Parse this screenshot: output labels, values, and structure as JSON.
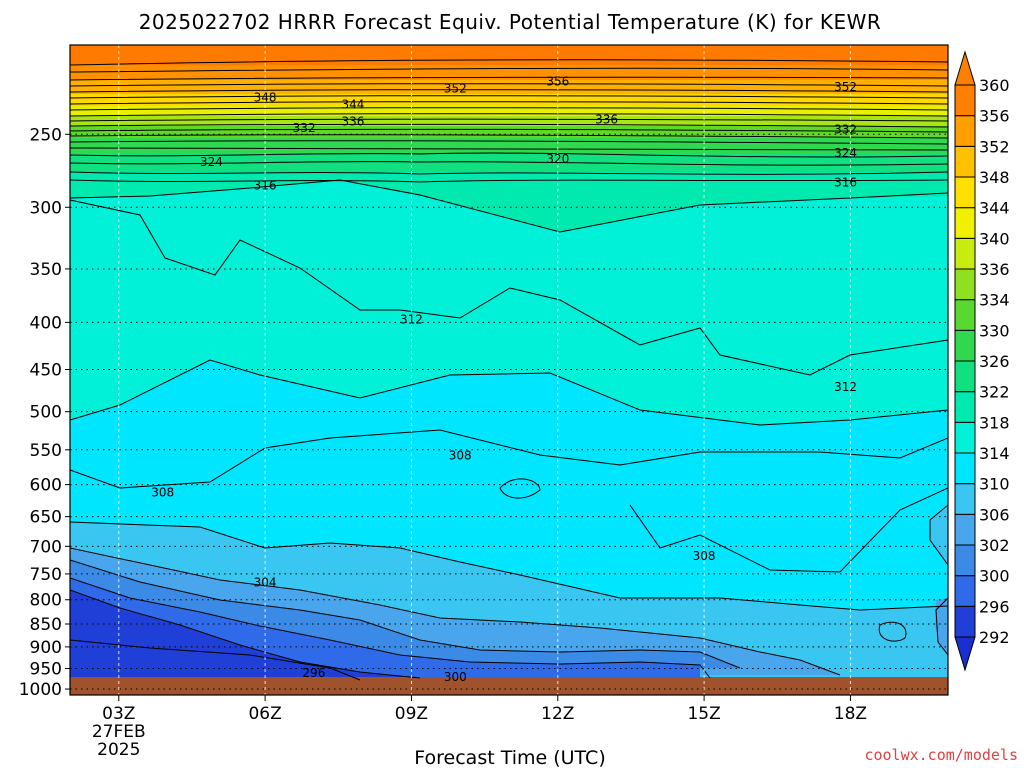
{
  "chart_data": {
    "type": "heatmap",
    "title": "2025022702 HRRR Forecast Equiv. Potential Temperature (K) for KEWR",
    "xlabel": "Forecast Time (UTC)",
    "ylabel": "",
    "credit": "coolwx.com/models",
    "x_ticks": [
      "03Z",
      "06Z",
      "09Z",
      "12Z",
      "15Z",
      "18Z"
    ],
    "x_tick_hours": [
      3,
      6,
      9,
      12,
      15,
      18
    ],
    "x_date_lines": [
      "27FEB",
      "2025"
    ],
    "xlim": [
      2,
      20
    ],
    "y_ticks": [
      250,
      300,
      350,
      400,
      450,
      500,
      550,
      600,
      650,
      700,
      750,
      800,
      850,
      900,
      950,
      1000
    ],
    "y_tick_labels": [
      "250",
      "300",
      "350",
      "400",
      "450",
      "500",
      "550",
      "600",
      "650",
      "700",
      "750",
      "800",
      "850",
      "900",
      "950",
      "1000"
    ],
    "ylim": [
      1015,
      200
    ],
    "y_scale": "log-pressure",
    "grid": true,
    "colorbar": {
      "levels": [
        292,
        296,
        300,
        302,
        306,
        310,
        314,
        318,
        322,
        326,
        330,
        334,
        336,
        340,
        344,
        348,
        352,
        356,
        360
      ],
      "colors": [
        "#1f3fd6",
        "#2f6ae8",
        "#3b8be6",
        "#4aa6ec",
        "#39c6f0",
        "#00e6ff",
        "#00f0d8",
        "#00eab0",
        "#10e080",
        "#30d850",
        "#58d830",
        "#90e020",
        "#c8ec10",
        "#f0f000",
        "#ffe000",
        "#ffc000",
        "#ffa000",
        "#ff8000"
      ]
    },
    "contour_labels": [
      {
        "text": "348",
        "hour": 6.0,
        "p": 228
      },
      {
        "text": "344",
        "hour": 7.8,
        "p": 232
      },
      {
        "text": "352",
        "hour": 9.9,
        "p": 223
      },
      {
        "text": "356",
        "hour": 12.0,
        "p": 219
      },
      {
        "text": "352",
        "hour": 17.9,
        "p": 222
      },
      {
        "text": "336",
        "hour": 7.8,
        "p": 242
      },
      {
        "text": "336",
        "hour": 13.0,
        "p": 241
      },
      {
        "text": "332",
        "hour": 6.8,
        "p": 246
      },
      {
        "text": "332",
        "hour": 17.9,
        "p": 247
      },
      {
        "text": "324",
        "hour": 4.9,
        "p": 268
      },
      {
        "text": "324",
        "hour": 17.9,
        "p": 262
      },
      {
        "text": "320",
        "hour": 12.0,
        "p": 266
      },
      {
        "text": "316",
        "hour": 6.0,
        "p": 284
      },
      {
        "text": "316",
        "hour": 17.9,
        "p": 282
      },
      {
        "text": "312",
        "hour": 9.0,
        "p": 397
      },
      {
        "text": "312",
        "hour": 17.9,
        "p": 470
      },
      {
        "text": "308",
        "hour": 3.9,
        "p": 612
      },
      {
        "text": "308",
        "hour": 10.0,
        "p": 558
      },
      {
        "text": "308",
        "hour": 15.0,
        "p": 717
      },
      {
        "text": "304",
        "hour": 6.0,
        "p": 766
      },
      {
        "text": "300",
        "hour": 9.9,
        "p": 970
      },
      {
        "text": "296",
        "hour": 7.0,
        "p": 961
      }
    ]
  }
}
